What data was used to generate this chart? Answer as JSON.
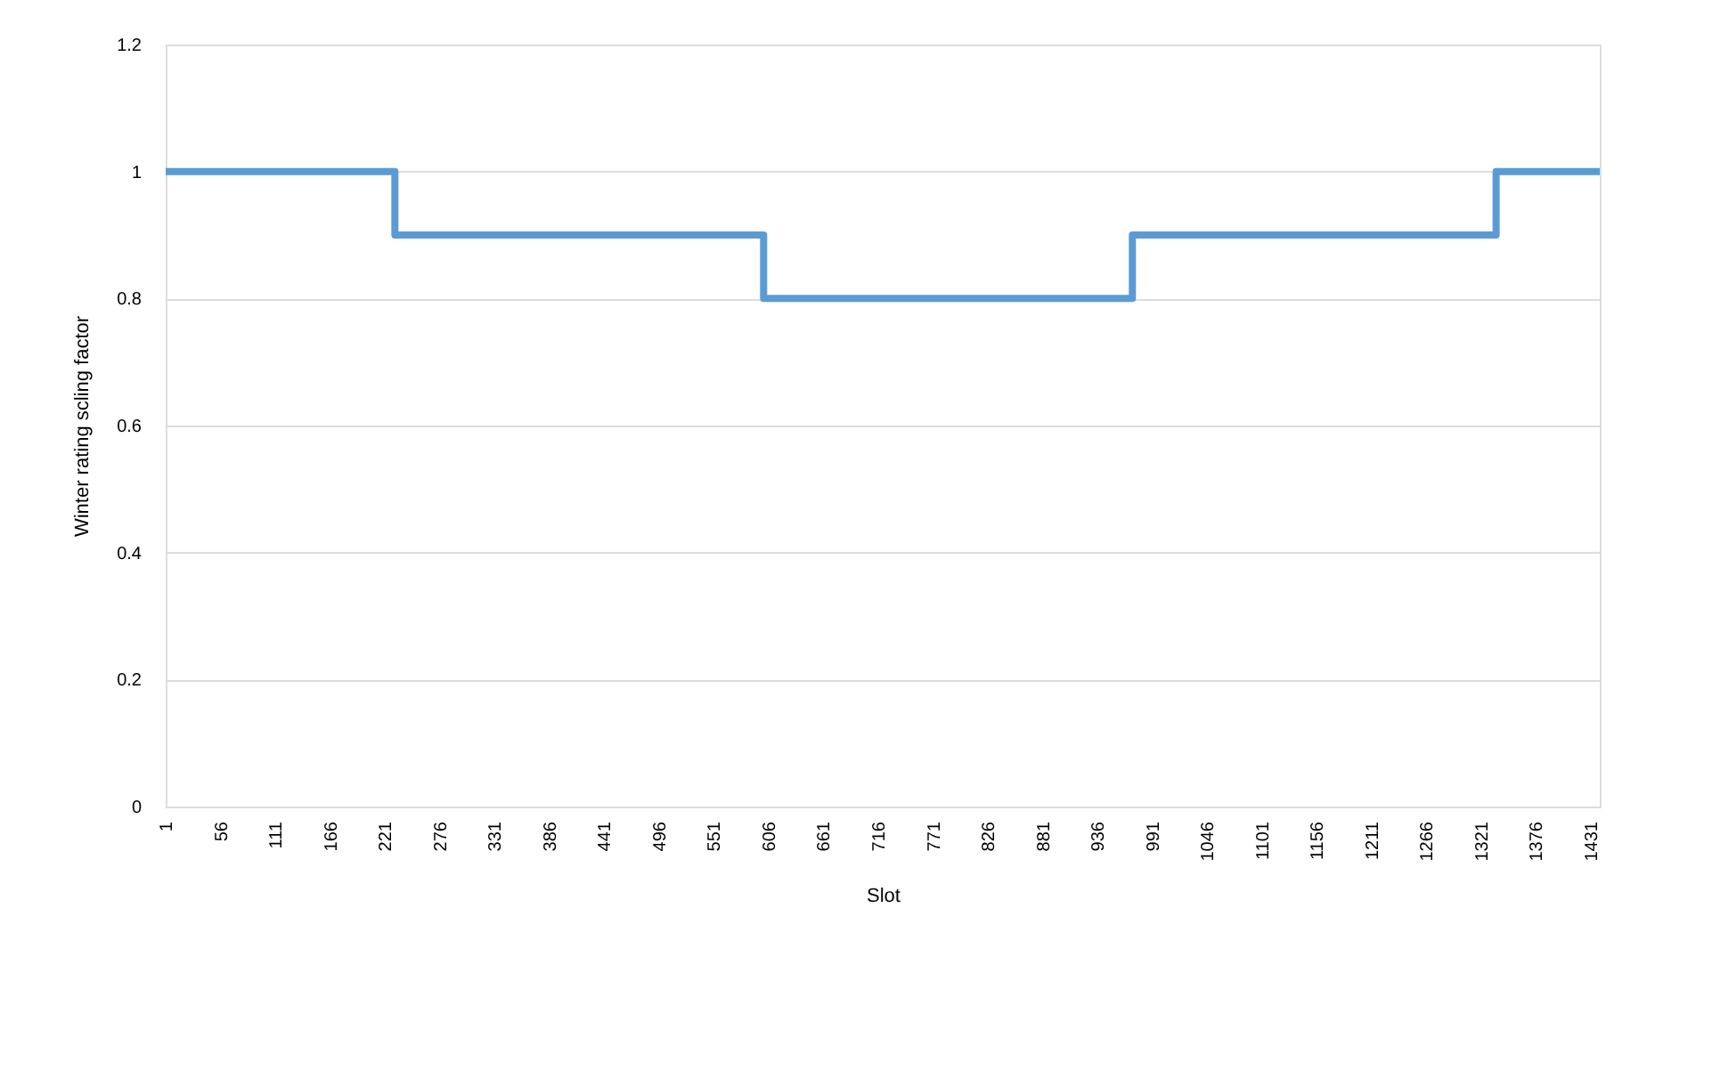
{
  "chart_data": {
    "type": "step",
    "xlabel": "Slot",
    "ylabel": "Winter rating scling factor",
    "x": [
      1,
      231,
      601,
      971,
      1336,
      1440
    ],
    "series": [
      {
        "color": "#5b9bd5",
        "values": [
          1,
          0.9,
          0.8,
          0.9,
          1,
          1
        ]
      }
    ],
    "xlim": [
      1,
      1440
    ],
    "xticks": [
      1,
      56,
      111,
      166,
      221,
      276,
      331,
      386,
      441,
      496,
      551,
      606,
      661,
      716,
      771,
      826,
      881,
      936,
      991,
      1046,
      1101,
      1156,
      1211,
      1266,
      1321,
      1376,
      1431
    ],
    "ylim": [
      0,
      1.2
    ],
    "yticks": [
      0,
      0.2,
      0.4,
      0.6,
      0.8,
      1,
      1.2
    ],
    "grid": "y",
    "marker": "none",
    "line_style": "solid"
  }
}
